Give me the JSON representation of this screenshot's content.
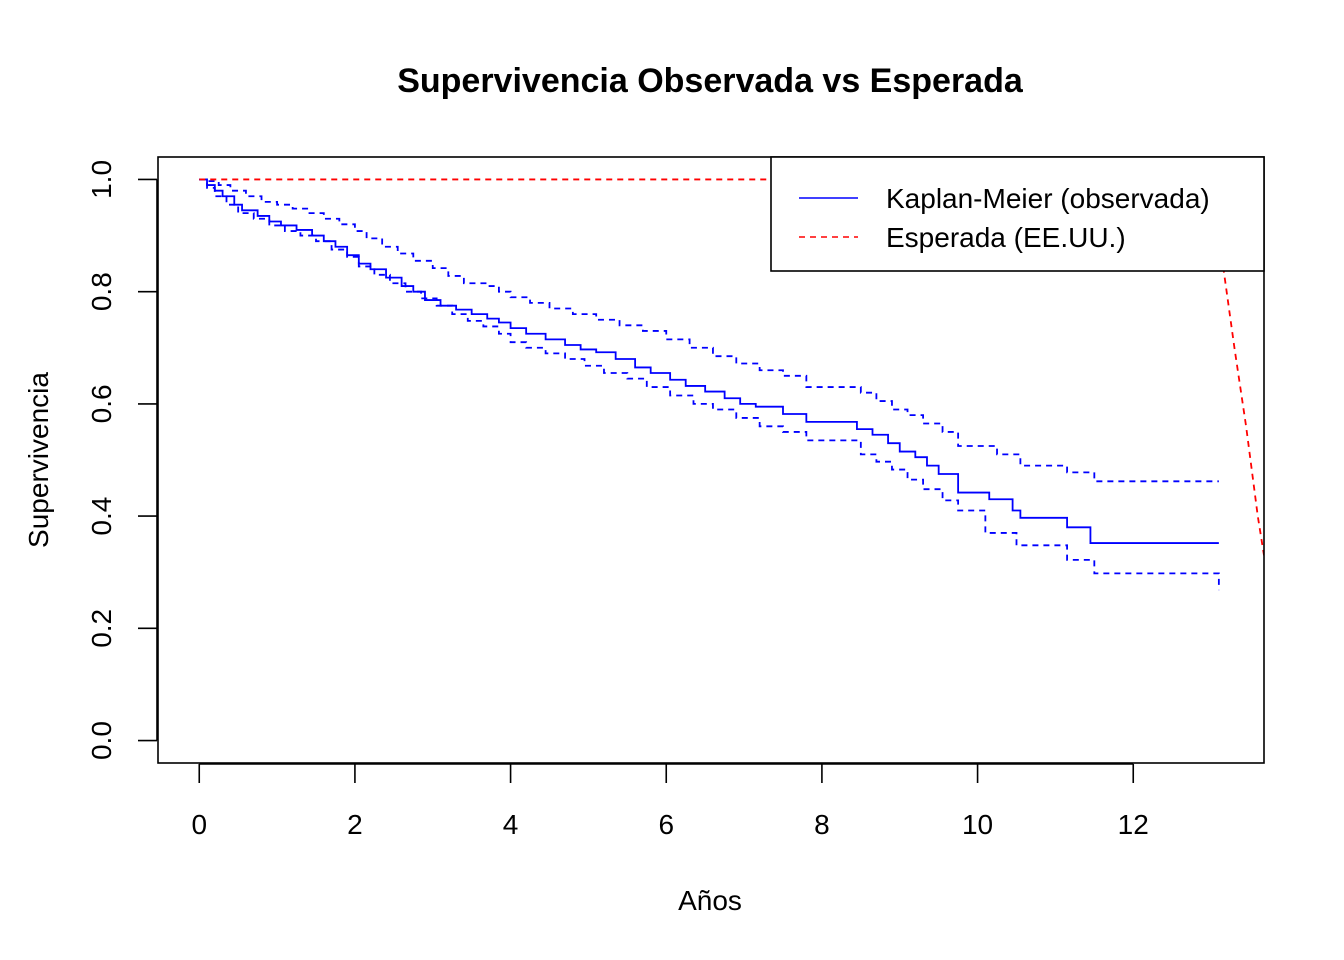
{
  "chart_data": {
    "type": "line",
    "title": "Supervivencia Observada vs Esperada",
    "xlabel": "Años",
    "ylabel": "Supervivencia",
    "xlim": [
      -0.53,
      13.68
    ],
    "ylim": [
      -0.04,
      1.04
    ],
    "xticks": [
      0,
      2,
      4,
      6,
      8,
      10,
      12
    ],
    "yticks": [
      0.0,
      0.2,
      0.4,
      0.6,
      0.8,
      1.0
    ],
    "xtick_labels": [
      "0",
      "2",
      "4",
      "6",
      "8",
      "10",
      "12"
    ],
    "ytick_labels": [
      "0.0",
      "0.2",
      "0.4",
      "0.6",
      "0.8",
      "1.0"
    ],
    "grid": false,
    "legend_position": "top-right",
    "legend": [
      {
        "label": "Kaplan-Meier (observada)",
        "color": "#0000ff",
        "dash": "solid"
      },
      {
        "label": "Esperada (EE.UU.)",
        "color": "#ff0000",
        "dash": "dashed"
      }
    ],
    "series": [
      {
        "name": "Kaplan-Meier (observada)",
        "color": "#0000ff",
        "style": "step-solid",
        "x": [
          0,
          0.1,
          0.2,
          0.3,
          0.45,
          0.55,
          0.75,
          0.9,
          1.05,
          1.25,
          1.45,
          1.6,
          1.75,
          1.9,
          2.05,
          2.2,
          2.4,
          2.6,
          2.75,
          2.9,
          3.1,
          3.3,
          3.5,
          3.7,
          3.85,
          4.0,
          4.2,
          4.45,
          4.7,
          4.9,
          5.1,
          5.35,
          5.6,
          5.8,
          6.05,
          6.25,
          6.5,
          6.75,
          6.95,
          7.15,
          7.5,
          7.8,
          8.1,
          8.45,
          8.65,
          8.85,
          9.0,
          9.2,
          9.35,
          9.5,
          9.75,
          10.15,
          10.45,
          10.55,
          11.15,
          11.45,
          13.1
        ],
        "y": [
          1.0,
          0.99,
          0.98,
          0.97,
          0.955,
          0.945,
          0.935,
          0.925,
          0.918,
          0.91,
          0.9,
          0.89,
          0.88,
          0.865,
          0.85,
          0.84,
          0.825,
          0.81,
          0.8,
          0.785,
          0.775,
          0.768,
          0.76,
          0.752,
          0.745,
          0.735,
          0.725,
          0.715,
          0.705,
          0.697,
          0.692,
          0.68,
          0.665,
          0.655,
          0.643,
          0.632,
          0.622,
          0.61,
          0.6,
          0.595,
          0.582,
          0.568,
          0.568,
          0.555,
          0.545,
          0.53,
          0.515,
          0.505,
          0.49,
          0.475,
          0.442,
          0.43,
          0.41,
          0.397,
          0.38,
          0.352,
          0.352
        ]
      },
      {
        "name": "",
        "color": "#0000ff",
        "style": "step-dashed",
        "x": [
          0,
          0.1,
          0.25,
          0.4,
          0.6,
          0.8,
          1.0,
          1.2,
          1.4,
          1.6,
          1.8,
          2.0,
          2.15,
          2.35,
          2.55,
          2.75,
          3.0,
          3.2,
          3.4,
          3.7,
          3.85,
          4.0,
          4.25,
          4.5,
          4.8,
          5.1,
          5.4,
          5.7,
          6.0,
          6.3,
          6.6,
          6.9,
          7.2,
          7.5,
          7.8,
          8.1,
          8.5,
          8.7,
          8.9,
          9.1,
          9.3,
          9.55,
          9.75,
          10.25,
          10.55,
          11.15,
          11.5,
          13.1
        ],
        "y": [
          1.0,
          0.997,
          0.99,
          0.98,
          0.97,
          0.96,
          0.955,
          0.948,
          0.94,
          0.93,
          0.92,
          0.908,
          0.895,
          0.88,
          0.868,
          0.855,
          0.842,
          0.828,
          0.815,
          0.81,
          0.8,
          0.79,
          0.78,
          0.77,
          0.76,
          0.75,
          0.74,
          0.73,
          0.715,
          0.7,
          0.685,
          0.672,
          0.66,
          0.65,
          0.63,
          0.63,
          0.62,
          0.605,
          0.59,
          0.58,
          0.565,
          0.55,
          0.525,
          0.51,
          0.49,
          0.478,
          0.462,
          0.462
        ]
      },
      {
        "name": "",
        "color": "#0000ff",
        "style": "step-dashed",
        "x": [
          0,
          0.1,
          0.2,
          0.35,
          0.5,
          0.7,
          0.9,
          1.1,
          1.3,
          1.5,
          1.7,
          1.9,
          2.05,
          2.25,
          2.45,
          2.65,
          2.85,
          3.05,
          3.25,
          3.45,
          3.65,
          3.85,
          4.0,
          4.2,
          4.45,
          4.7,
          4.95,
          5.2,
          5.5,
          5.75,
          6.05,
          6.35,
          6.6,
          6.9,
          7.2,
          7.5,
          7.8,
          8.5,
          8.7,
          8.9,
          9.1,
          9.3,
          9.55,
          9.75,
          10.1,
          10.5,
          11.15,
          11.5,
          13.1
        ],
        "y": [
          1.0,
          0.985,
          0.97,
          0.955,
          0.94,
          0.93,
          0.918,
          0.908,
          0.9,
          0.89,
          0.875,
          0.862,
          0.845,
          0.83,
          0.815,
          0.8,
          0.788,
          0.775,
          0.76,
          0.748,
          0.738,
          0.725,
          0.71,
          0.7,
          0.69,
          0.68,
          0.668,
          0.655,
          0.645,
          0.63,
          0.615,
          0.6,
          0.59,
          0.575,
          0.56,
          0.55,
          0.535,
          0.51,
          0.497,
          0.483,
          0.465,
          0.448,
          0.428,
          0.41,
          0.37,
          0.348,
          0.322,
          0.298,
          0.268
        ]
      },
      {
        "name": "Esperada (EE.UU.)",
        "color": "#ff0000",
        "style": "dashed",
        "x": [
          0,
          7.5,
          13.0,
          13.15,
          13.3,
          13.45,
          13.6,
          13.68
        ],
        "y": [
          1.0,
          1.0,
          0.98,
          0.85,
          0.7,
          0.56,
          0.4,
          0.33
        ]
      }
    ]
  }
}
